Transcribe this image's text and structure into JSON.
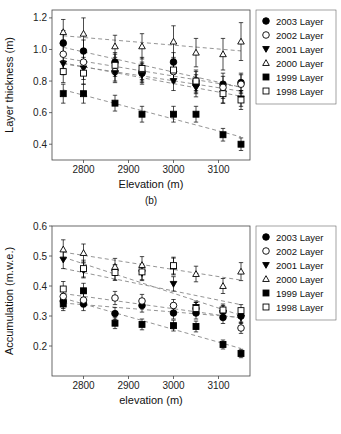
{
  "chart_data": [
    {
      "type": "scatter",
      "x_label": "Elevation (m)",
      "y_label": "Layer thickness (m)",
      "annotation": "(b)",
      "x": [
        2755,
        2800,
        2870,
        2930,
        3000,
        3050,
        3110,
        3150
      ],
      "xlim": [
        2730,
        3170
      ],
      "ylim": [
        0.3,
        1.25
      ],
      "xticks": [
        2800,
        2900,
        3000,
        3100
      ],
      "yticks": [
        0.4,
        0.6,
        0.8,
        {
          "value": 1.0,
          "label": "1.0"
        },
        1.2
      ],
      "grid": false,
      "legend": "right",
      "series": [
        {
          "name": "2003 Layer",
          "marker": "circle",
          "color": "black",
          "values": [
            1.04,
            0.99,
            0.92,
            0.85,
            0.92,
            0.78,
            0.78,
            0.79
          ],
          "errors": [
            0.08,
            0.07,
            0.06,
            0.06,
            0.06,
            0.06,
            0.07,
            0.06
          ],
          "trend": {
            "x": [
              2755,
              3150
            ],
            "values": [
              1.01348,
              0.7612
            ]
          }
        },
        {
          "name": "2002 Layer",
          "marker": "circle-open",
          "color": "black",
          "values": [
            0.97,
            0.92,
            0.86,
            0.86,
            0.86,
            0.8,
            0.76,
            0.78
          ],
          "errors": [
            0.09,
            0.08,
            0.06,
            0.06,
            0.07,
            0.06,
            0.07,
            0.06
          ],
          "trend": {
            "x": [
              2755,
              3150
            ],
            "values": [
              0.94641,
              0.76136
            ]
          }
        },
        {
          "name": "2001 Layer",
          "marker": "triangle-down",
          "color": "black",
          "values": [
            0.91,
            0.88,
            0.85,
            0.84,
            0.8,
            0.76,
            0.72,
            0.69
          ],
          "errors": [
            0.07,
            0.07,
            0.06,
            0.06,
            0.06,
            0.06,
            0.06,
            0.05
          ],
          "trend": {
            "x": [
              2755,
              3150
            ],
            "values": [
              0.91483,
              0.70368
            ]
          }
        },
        {
          "name": "2000 Layer",
          "marker": "triangle-up-open",
          "color": "black",
          "values": [
            1.11,
            1.1,
            1.02,
            1.02,
            1.05,
            0.98,
            0.97,
            1.05
          ],
          "errors": [
            0.08,
            0.1,
            0.07,
            0.08,
            0.1,
            0.09,
            0.1,
            0.12
          ],
          "trend": {
            "x": [
              2755,
              3150
            ],
            "values": [
              1.08683,
              0.9909
            ]
          }
        },
        {
          "name": "1999 Layer",
          "marker": "square",
          "color": "black",
          "values": [
            0.72,
            0.72,
            0.66,
            0.59,
            0.59,
            0.59,
            0.46,
            0.4
          ],
          "errors": [
            0.06,
            0.06,
            0.05,
            0.05,
            0.05,
            0.05,
            0.04,
            0.04
          ],
          "trend": {
            "x": [
              2755,
              3150
            ],
            "values": [
              0.74452,
              0.44647
            ]
          }
        },
        {
          "name": "1998 Layer",
          "marker": "square-open",
          "color": "black",
          "values": [
            0.86,
            0.85,
            0.9,
            0.88,
            0.87,
            0.8,
            0.72,
            0.68
          ],
          "errors": [
            0.07,
            0.07,
            0.07,
            0.07,
            0.07,
            0.07,
            0.06,
            0.06
          ],
          "trend": {
            "x": [
              2755,
              3150
            ],
            "values": [
              0.90888,
              0.73605
            ]
          }
        }
      ]
    },
    {
      "type": "scatter",
      "x_label": "elevation (m)",
      "y_label": "Accumulation (m.w.e.)",
      "x": [
        2755,
        2800,
        2870,
        2930,
        3000,
        3050,
        3110,
        3150
      ],
      "xlim": [
        2730,
        3170
      ],
      "ylim": [
        0.1,
        0.6
      ],
      "xticks": [
        2800,
        2900,
        3000,
        3100
      ],
      "yticks": [
        0.2,
        0.3,
        0.4,
        0.5,
        0.6
      ],
      "grid": false,
      "legend": "right",
      "series": [
        {
          "name": "2003 Layer",
          "marker": "circle",
          "color": "black",
          "values": [
            0.35,
            0.34,
            0.308,
            0.335,
            0.31,
            0.31,
            0.295,
            0.3
          ],
          "errors": [
            0.025,
            0.022,
            0.02,
            0.022,
            0.02,
            0.02,
            0.02,
            0.02
          ],
          "trend": {
            "x": [
              2755,
              3150
            ],
            "values": [
              0.34316,
              0.2952
            ]
          }
        },
        {
          "name": "2002 Layer",
          "marker": "circle-open",
          "color": "black",
          "values": [
            0.365,
            0.353,
            0.36,
            0.35,
            0.335,
            0.325,
            0.315,
            0.26
          ],
          "errors": [
            0.025,
            0.022,
            0.022,
            0.022,
            0.02,
            0.02,
            0.02,
            0.018
          ],
          "trend": {
            "x": [
              2755,
              3150
            ],
            "values": [
              0.37481,
              0.29327
            ]
          }
        },
        {
          "name": "2001 Layer",
          "marker": "triangle-down",
          "color": "black",
          "values": [
            0.488,
            0.452,
            0.445,
            0.443,
            0.407,
            0.33,
            0.31,
            0.295
          ],
          "errors": [
            0.03,
            0.025,
            0.025,
            0.025,
            0.024,
            0.02,
            0.02,
            0.02
          ],
          "trend": {
            "x": [
              2755,
              3150
            ],
            "values": [
              0.4961,
              0.30193
            ]
          }
        },
        {
          "name": "2000 Layer",
          "marker": "triangle-up-open",
          "color": "black",
          "values": [
            0.522,
            0.51,
            0.464,
            0.47,
            0.465,
            0.44,
            0.4,
            0.448
          ],
          "errors": [
            0.032,
            0.03,
            0.028,
            0.028,
            0.028,
            0.026,
            0.025,
            0.03
          ],
          "trend": {
            "x": [
              2755,
              3150
            ],
            "values": [
              0.51279,
              0.41962
            ]
          }
        },
        {
          "name": "1999 Layer",
          "marker": "square",
          "color": "black",
          "values": [
            0.34,
            0.384,
            0.276,
            0.272,
            0.268,
            0.265,
            0.205,
            0.175
          ],
          "errors": [
            0.022,
            0.025,
            0.018,
            0.018,
            0.018,
            0.018,
            0.015,
            0.014
          ],
          "trend": {
            "x": [
              2755,
              3150
            ],
            "values": [
              0.3593,
              0.19172
            ]
          }
        },
        {
          "name": "1998 Layer",
          "marker": "square-open",
          "color": "black",
          "values": [
            0.39,
            0.458,
            0.445,
            0.447,
            0.468,
            0.325,
            0.32,
            0.318
          ],
          "errors": [
            0.025,
            0.028,
            0.026,
            0.026,
            0.028,
            0.02,
            0.02,
            0.02
          ],
          "trend": {
            "x": [
              2755,
              3150
            ],
            "values": [
              0.45855,
              0.33764
            ]
          }
        }
      ]
    }
  ]
}
